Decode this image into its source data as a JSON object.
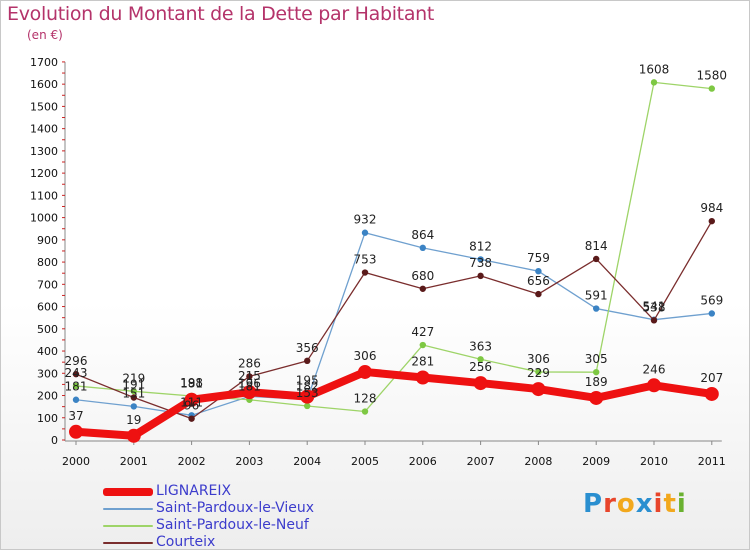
{
  "title": "Evolution du Montant de la Dette par Habitant",
  "subtitle": "(en €)",
  "brand": {
    "text": "Proxiti",
    "letter_colors": [
      "#2a8fd0",
      "#e8452b",
      "#f2a81d",
      "#2a8fd0",
      "#e8452b",
      "#f2a81d",
      "#6ab130"
    ]
  },
  "chart_data": {
    "type": "line",
    "x": [
      "2000",
      "2001",
      "2002",
      "2003",
      "2004",
      "2005",
      "2006",
      "2007",
      "2008",
      "2009",
      "2010",
      "2011"
    ],
    "ylim": [
      0,
      1700
    ],
    "yticks": [
      "0",
      "100",
      "200",
      "300",
      "400",
      "500",
      "600",
      "700",
      "800",
      "900",
      "1000",
      "1100",
      "1200",
      "1300",
      "1400",
      "1500",
      "1600",
      "1700"
    ],
    "grid": false,
    "legend_position": "bottom-left",
    "series": [
      {
        "name": "Saint-Pardoux-le-Vieux",
        "color": "#6fa0cf",
        "marker": "#3b83c4",
        "values": [
          181,
          151,
          111,
          196,
          182,
          932,
          864,
          812,
          759,
          591,
          541,
          569
        ],
        "labels": [
          "181",
          "151",
          "111",
          "196",
          "182",
          "932",
          "864",
          "812",
          "759",
          "591",
          "541",
          "569"
        ]
      },
      {
        "name": "Saint-Pardoux-le-Neuf",
        "color": "#9ed468",
        "marker": "#7ec843",
        "values": [
          243,
          219,
          198,
          181,
          153,
          128,
          427,
          363,
          306,
          305,
          1608,
          1580
        ],
        "labels": [
          "243",
          "219",
          "198",
          "181",
          "153",
          "128",
          "427",
          "363",
          "306",
          "305",
          "1608",
          "1580"
        ]
      },
      {
        "name": "Courteix",
        "color": "#7a2d2d",
        "marker": "#5a1a1a",
        "values": [
          296,
          191,
          96,
          286,
          356,
          753,
          680,
          738,
          656,
          814,
          538,
          984
        ],
        "labels": [
          "296",
          "191",
          "96",
          "286",
          "356",
          "753",
          "680",
          "738",
          "656",
          "814",
          "538",
          "984"
        ]
      },
      {
        "name": "LIGNAREIX",
        "color": "#ee1111",
        "marker": "#ee1111",
        "values": [
          37,
          19,
          181,
          215,
          195,
          306,
          281,
          256,
          229,
          189,
          246,
          207
        ],
        "labels": [
          "37",
          "19",
          "181",
          "215",
          "195",
          "306",
          "281",
          "256",
          "229",
          "189",
          "246",
          "207"
        ]
      }
    ],
    "legend": [
      "LIGNAREIX",
      "Saint-Pardoux-le-Vieux",
      "Saint-Pardoux-le-Neuf",
      "Courteix"
    ]
  }
}
